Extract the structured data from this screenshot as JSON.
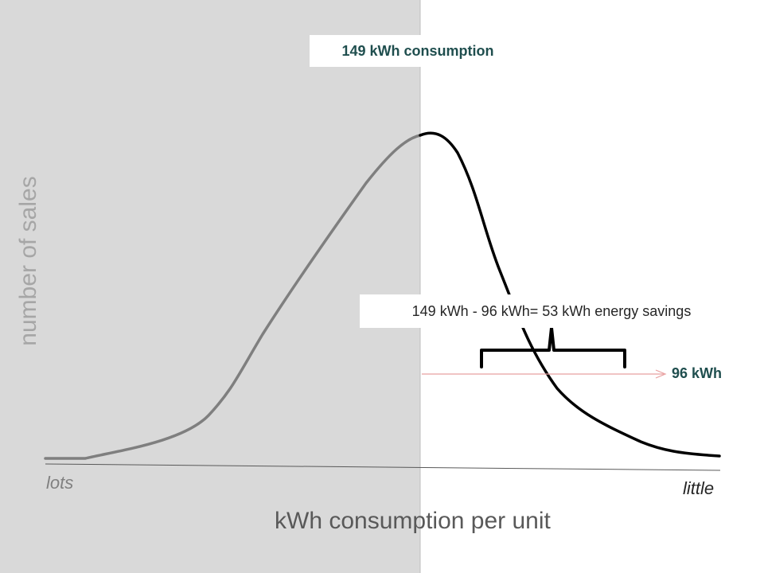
{
  "chart_data": {
    "type": "line",
    "title": "",
    "xlabel": "kWh consumption per unit",
    "ylabel": "number of sales",
    "x_end_labels": {
      "left": "lots",
      "right": "little"
    },
    "shaded_region": {
      "from_edge": "left",
      "up_to": "peak",
      "color": "#d9d9d9"
    },
    "annotations": {
      "peak_label": "149 kWh consumption",
      "target_label": "96 kWh",
      "savings_label": "149 kWh - 96 kWh= 53 kWh energy savings"
    },
    "colors": {
      "curve_shaded": "#7f7f7f",
      "curve": "#000000",
      "arrow": "#e8a0a0",
      "shade": "#d9d9d9"
    }
  }
}
